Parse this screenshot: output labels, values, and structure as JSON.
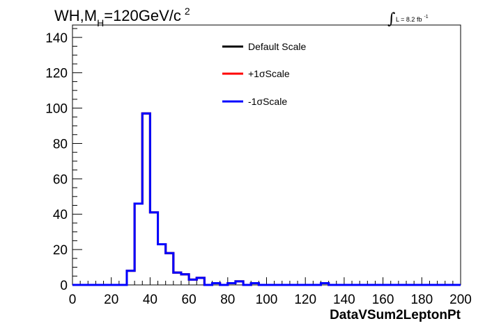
{
  "chart_data": {
    "type": "histogram",
    "title": {
      "main": "WH,M",
      "sub": "H",
      "rest": "=120GeV/c",
      "sup": "2"
    },
    "lumi": {
      "symbol": "∫",
      "text": "L = 8.2 fb",
      "sup": "-1"
    },
    "xlabel": "DataVSum2LeptonPt",
    "ylabel": "",
    "xlim": [
      0,
      200
    ],
    "ylim": [
      0,
      147
    ],
    "x_ticks": [
      "0",
      "20",
      "40",
      "60",
      "80",
      "100",
      "120",
      "140",
      "160",
      "180",
      "200"
    ],
    "y_ticks": [
      "0",
      "20",
      "40",
      "60",
      "80",
      "100",
      "120",
      "140"
    ],
    "grid": false,
    "legend_position": "top-center",
    "bin_edges": [
      0,
      4,
      8,
      12,
      16,
      20,
      24,
      28,
      32,
      36,
      40,
      44,
      48,
      52,
      56,
      60,
      64,
      68,
      72,
      76,
      80,
      84,
      88,
      92,
      96,
      100,
      104,
      108,
      112,
      116,
      120,
      124,
      128,
      132,
      136,
      140,
      144,
      148,
      152,
      156,
      160,
      164,
      168,
      172,
      176,
      180,
      184,
      188,
      192,
      196,
      200
    ],
    "series": [
      {
        "name": "Default Scale",
        "color": "#000000",
        "values": [
          0,
          0,
          0,
          0,
          0,
          0,
          0,
          8,
          46,
          97,
          41,
          23,
          18,
          7,
          6,
          3,
          4,
          0,
          1,
          0,
          1,
          2,
          0,
          1,
          0,
          0,
          0,
          0,
          0,
          0,
          0,
          0,
          1,
          0,
          0,
          0,
          0,
          0,
          0,
          0,
          0,
          0,
          0,
          0,
          0,
          0,
          0,
          0,
          0,
          0
        ]
      },
      {
        "name": "+1σScale",
        "color": "#ff0000",
        "values": [
          0,
          0,
          0,
          0,
          0,
          0,
          0,
          8,
          46,
          97,
          41,
          23,
          18,
          7,
          6,
          3,
          4,
          0,
          1,
          0,
          1,
          2,
          0,
          1,
          0,
          0,
          0,
          0,
          0,
          0,
          0,
          0,
          1,
          0,
          0,
          0,
          0,
          0,
          0,
          0,
          0,
          0,
          0,
          0,
          0,
          0,
          0,
          0,
          0,
          0
        ]
      },
      {
        "name": "-1σScale",
        "color": "#0000ff",
        "values": [
          0,
          0,
          0,
          0,
          0,
          0,
          0,
          8,
          46,
          97,
          41,
          23,
          18,
          7,
          6,
          3,
          4,
          0,
          1,
          0,
          1,
          2,
          0,
          1,
          0,
          0,
          0,
          0,
          0,
          0,
          0,
          0,
          1,
          0,
          0,
          0,
          0,
          0,
          0,
          0,
          0,
          0,
          0,
          0,
          0,
          0,
          0,
          0,
          0,
          0
        ]
      }
    ]
  }
}
